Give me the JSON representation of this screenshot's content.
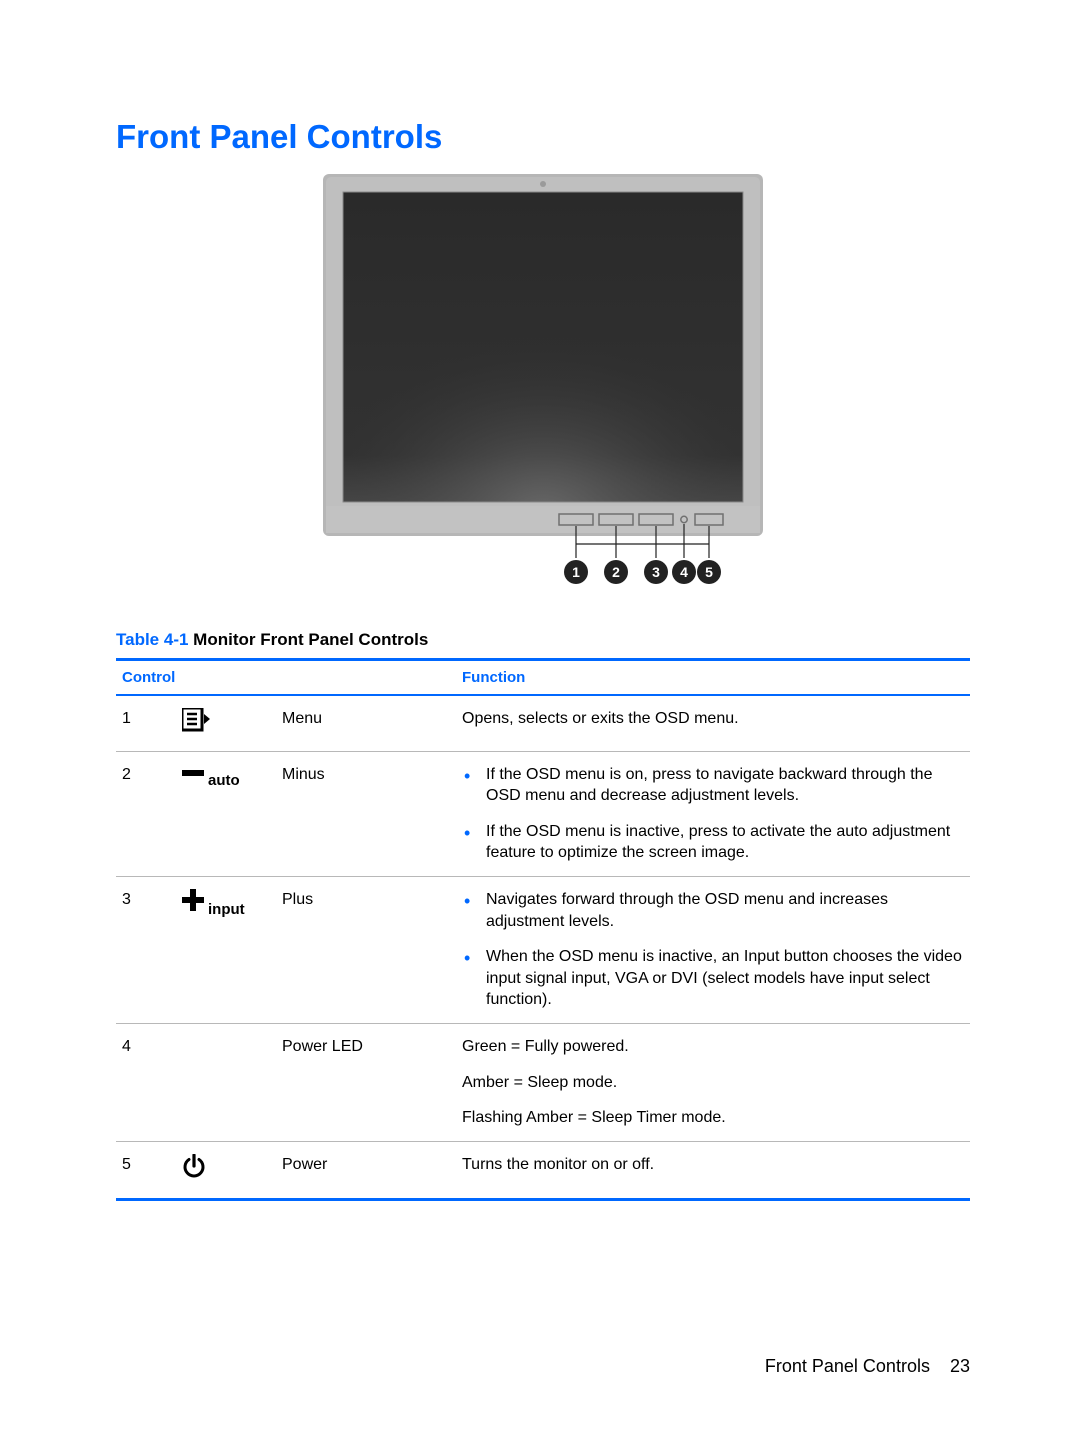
{
  "colors": {
    "blue": "#0068ff",
    "text": "#000000",
    "border_grey": "#b8b8b8",
    "monitor_bezel": "#b6b6b6",
    "monitor_bezel_dark": "#9c9c9c",
    "monitor_screen_top": "#2c2c2c",
    "monitor_screen_bot": "#3a3a3a",
    "callout_fill": "#222222",
    "callout_text": "#ffffff"
  },
  "heading": "Front Panel Controls",
  "table_caption_prefix": "Table 4-1",
  "table_caption_rest": "  Monitor Front Panel Controls",
  "headers": {
    "control": "Control",
    "function": "Function"
  },
  "rows": [
    {
      "num": "1",
      "icon": "menu",
      "icon_label": "",
      "name": "Menu",
      "func_type": "text",
      "func_text": "Opens, selects or exits the OSD menu."
    },
    {
      "num": "2",
      "icon": "minus",
      "icon_label": "auto",
      "name": "Minus",
      "func_type": "list",
      "func_items": [
        "If the OSD menu is on, press to navigate backward through the OSD menu and decrease adjustment levels.",
        "If the OSD menu is inactive, press to activate the auto adjustment feature to optimize the screen image."
      ]
    },
    {
      "num": "3",
      "icon": "plus",
      "icon_label": "input",
      "name": "Plus",
      "func_type": "list",
      "func_items": [
        "Navigates forward through the OSD menu and increases adjustment levels.",
        "When the OSD menu is inactive, an Input button chooses the video input signal input, VGA or DVI (select models have input select function)."
      ]
    },
    {
      "num": "4",
      "icon": "",
      "icon_label": "",
      "name": "Power LED",
      "func_type": "lines",
      "func_lines": [
        "Green = Fully powered.",
        "Amber = Sleep mode.",
        "Flashing Amber = Sleep Timer mode."
      ]
    },
    {
      "num": "5",
      "icon": "power",
      "icon_label": "",
      "name": "Power",
      "func_type": "text",
      "func_text": "Turns the monitor on or off."
    }
  ],
  "figure": {
    "callouts": [
      "1",
      "2",
      "3",
      "4",
      "5"
    ]
  },
  "footer": {
    "label": "Front Panel Controls",
    "page": "23"
  }
}
